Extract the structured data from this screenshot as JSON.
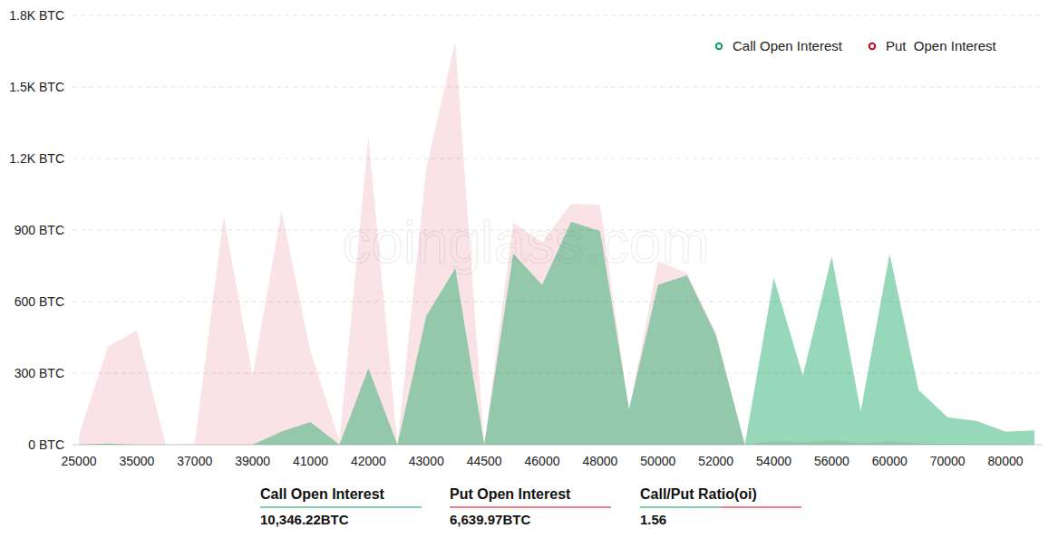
{
  "chart_data": {
    "type": "area",
    "watermark": "coinglass.com",
    "categories": [
      "25000",
      null,
      "35000",
      null,
      "37000",
      null,
      "39000",
      null,
      "41000",
      null,
      "42000",
      null,
      "43000",
      null,
      "44500",
      null,
      "46000",
      null,
      "48000",
      null,
      "50000",
      null,
      "52000",
      null,
      "54000",
      null,
      "56000",
      null,
      "60000",
      null,
      "70000",
      null,
      "80000",
      null
    ],
    "series": [
      {
        "name": "Put  Open Interest",
        "color": "#d0021b",
        "values": [
          40,
          410,
          480,
          0,
          5,
          960,
          290,
          980,
          390,
          15,
          1290,
          0,
          1160,
          1690,
          0,
          930,
          850,
          1010,
          1005,
          140,
          770,
          720,
          470,
          0,
          15,
          10,
          20,
          5,
          15,
          5,
          3,
          2,
          1,
          0
        ]
      },
      {
        "name": "Call Open Interest",
        "color": "#07a35a",
        "values": [
          0,
          5,
          0,
          0,
          0,
          0,
          0,
          55,
          95,
          0,
          320,
          0,
          540,
          740,
          0,
          800,
          670,
          935,
          895,
          150,
          670,
          710,
          460,
          0,
          700,
          290,
          790,
          140,
          800,
          230,
          115,
          100,
          55,
          60
        ]
      }
    ],
    "ylim": [
      0,
      1800
    ],
    "yticks": [
      {
        "value": 0,
        "label": "0 BTC"
      },
      {
        "value": 300,
        "label": "300 BTC"
      },
      {
        "value": 600,
        "label": "600 BTC"
      },
      {
        "value": 900,
        "label": "900 BTC"
      },
      {
        "value": 1200,
        "label": "1.2K BTC"
      },
      {
        "value": 1500,
        "label": "1.5K BTC"
      },
      {
        "value": 1800,
        "label": "1.8K BTC"
      }
    ],
    "grid": true,
    "legend": "top-right",
    "annotations": [
      {
        "label": "Call Open Interest",
        "value": "10,346.22BTC"
      },
      {
        "label": "Put Open Interest",
        "value": "6,639.97BTC"
      },
      {
        "label": "Call/Put Ratio(oi)",
        "value": "1.56"
      }
    ]
  }
}
